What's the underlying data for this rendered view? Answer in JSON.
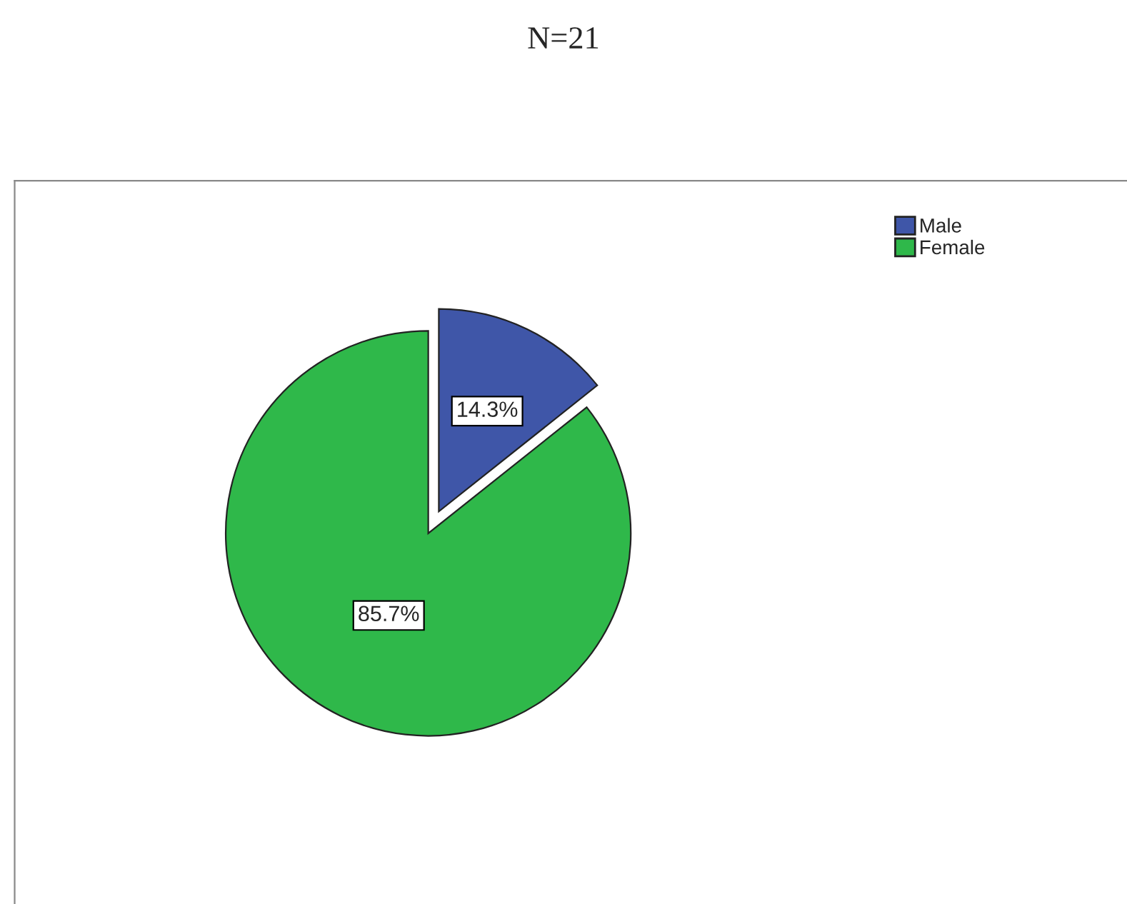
{
  "chart_data": {
    "type": "pie",
    "title": "N=21",
    "categories": [
      "Male",
      "Female"
    ],
    "values": [
      14.3,
      85.7
    ],
    "colors": [
      "#3f56a8",
      "#2fb84a"
    ],
    "value_labels": [
      "14.3%",
      "85.7%"
    ],
    "legend": "top right"
  }
}
